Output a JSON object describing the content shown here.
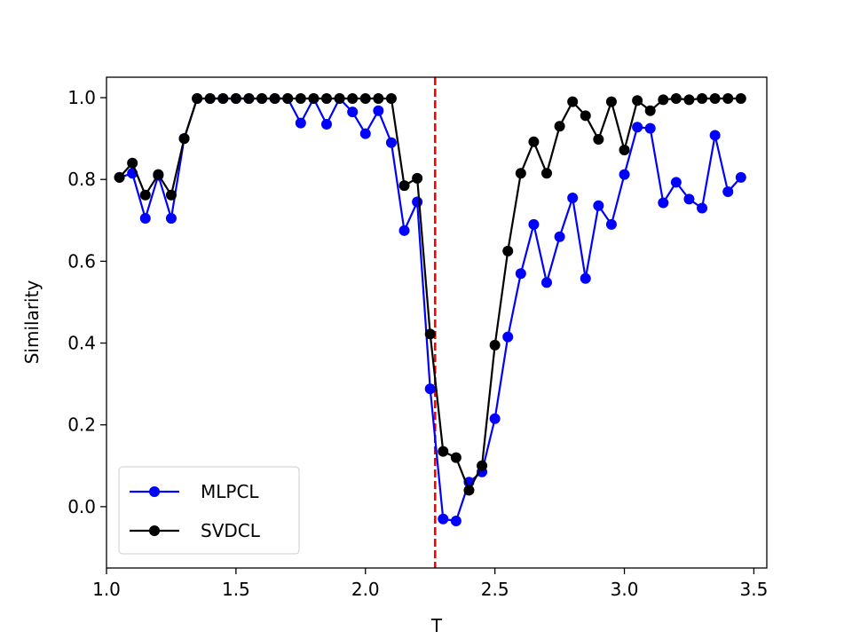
{
  "chart_data": {
    "type": "line",
    "title": "",
    "xlabel": "T",
    "ylabel": "Similarity",
    "xlim": [
      1.0,
      3.55
    ],
    "ylim": [
      -0.15,
      1.05
    ],
    "xticks": [
      "1.0",
      "1.5",
      "2.0",
      "2.5",
      "3.0",
      "3.5"
    ],
    "yticks": [
      "0.0",
      "0.2",
      "0.4",
      "0.6",
      "0.8",
      "1.0"
    ],
    "grid": false,
    "legend_position": "lower-left",
    "reference_line": {
      "x": 2.269,
      "style": "dashed",
      "color": "#ff0000"
    },
    "x": [
      1.05,
      1.1,
      1.15,
      1.2,
      1.25,
      1.3,
      1.35,
      1.4,
      1.45,
      1.5,
      1.55,
      1.6,
      1.65,
      1.7,
      1.75,
      1.8,
      1.85,
      1.9,
      1.95,
      2.0,
      2.05,
      2.1,
      2.15,
      2.2,
      2.25,
      2.3,
      2.35,
      2.4,
      2.45,
      2.5,
      2.55,
      2.6,
      2.65,
      2.7,
      2.75,
      2.8,
      2.85,
      2.9,
      2.95,
      3.0,
      3.05,
      3.1,
      3.15,
      3.2,
      3.25,
      3.3,
      3.35,
      3.4,
      3.45
    ],
    "series": [
      {
        "name": "MLPCL",
        "color": "#0000ff",
        "values": [
          0.805,
          0.815,
          0.705,
          0.81,
          0.705,
          0.9,
          0.998,
          0.998,
          0.998,
          0.998,
          0.998,
          0.998,
          0.998,
          0.998,
          0.938,
          0.998,
          0.935,
          0.998,
          0.965,
          0.912,
          0.968,
          0.89,
          0.675,
          0.745,
          0.288,
          -0.03,
          -0.035,
          0.06,
          0.085,
          0.215,
          0.415,
          0.57,
          0.69,
          0.548,
          0.66,
          0.755,
          0.558,
          0.736,
          0.69,
          0.812,
          0.928,
          0.925,
          0.743,
          0.793,
          0.752,
          0.73,
          0.908,
          0.77,
          0.805
        ]
      },
      {
        "name": "SVDCL",
        "color": "#000000",
        "values": [
          0.805,
          0.84,
          0.762,
          0.812,
          0.762,
          0.9,
          0.998,
          0.998,
          0.998,
          0.998,
          0.998,
          0.998,
          0.998,
          0.998,
          0.998,
          0.998,
          0.998,
          0.998,
          0.998,
          0.998,
          0.998,
          0.998,
          0.785,
          0.803,
          0.422,
          0.135,
          0.12,
          0.04,
          0.1,
          0.395,
          0.625,
          0.815,
          0.892,
          0.815,
          0.93,
          0.99,
          0.956,
          0.898,
          0.99,
          0.872,
          0.993,
          0.968,
          0.995,
          0.998,
          0.995,
          0.998,
          0.998,
          0.998,
          0.998
        ]
      }
    ]
  }
}
